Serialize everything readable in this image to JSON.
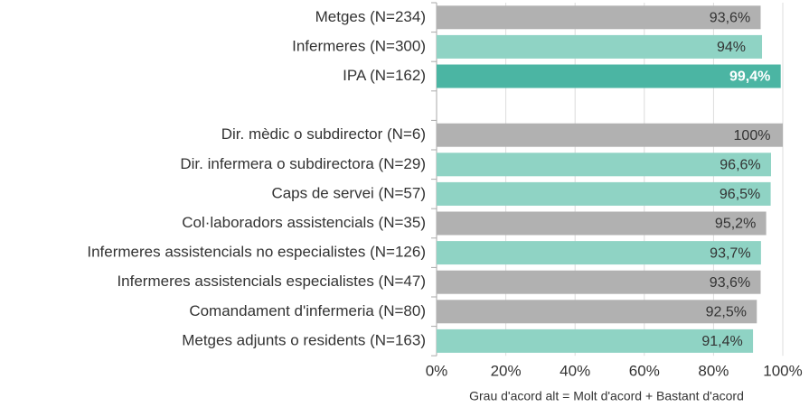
{
  "chart_data": {
    "type": "barh",
    "categories": [
      "Metges (N=234)",
      "Infermeres (N=300)",
      "IPA (N=162)",
      null,
      "Dir. mèdic o subdirector (N=6)",
      "Dir. infermera o subdirectora (N=29)",
      "Caps de servei (N=57)",
      "Col·laboradors assistencials (N=35)",
      "Infermeres assistencials no especialistes (N=126)",
      "Infermeres assistencials especialistes (N=47)",
      "Comandament d'infermeria (N=80)",
      "Metges adjunts o residents (N=163)"
    ],
    "values": [
      93.6,
      94,
      99.4,
      null,
      100,
      96.6,
      96.5,
      95.2,
      93.7,
      93.6,
      92.5,
      91.4
    ],
    "value_labels": [
      "93,6%",
      "94%",
      "99,4%",
      null,
      "100%",
      "96,6%",
      "96,5%",
      "95,2%",
      "93,7%",
      "93,6%",
      "92,5%",
      "91,4%"
    ],
    "colors": [
      "#b1b1b1",
      "#8fd3c4",
      "#4bb5a3",
      null,
      "#b1b1b1",
      "#8fd3c4",
      "#8fd3c4",
      "#b1b1b1",
      "#8fd3c4",
      "#b1b1b1",
      "#b1b1b1",
      "#8fd3c4"
    ],
    "xlim": [
      0,
      100
    ],
    "xticks": [
      {
        "value": 0,
        "label": "0%"
      },
      {
        "value": 20,
        "label": "20%"
      },
      {
        "value": 40,
        "label": "40%"
      },
      {
        "value": 60,
        "label": "60%"
      },
      {
        "value": 80,
        "label": "80%"
      },
      {
        "value": 100,
        "label": "100%"
      }
    ],
    "xlabel": "Grau d'acord alt = Molt d'acord + Bastant d'acord",
    "grid": true
  }
}
